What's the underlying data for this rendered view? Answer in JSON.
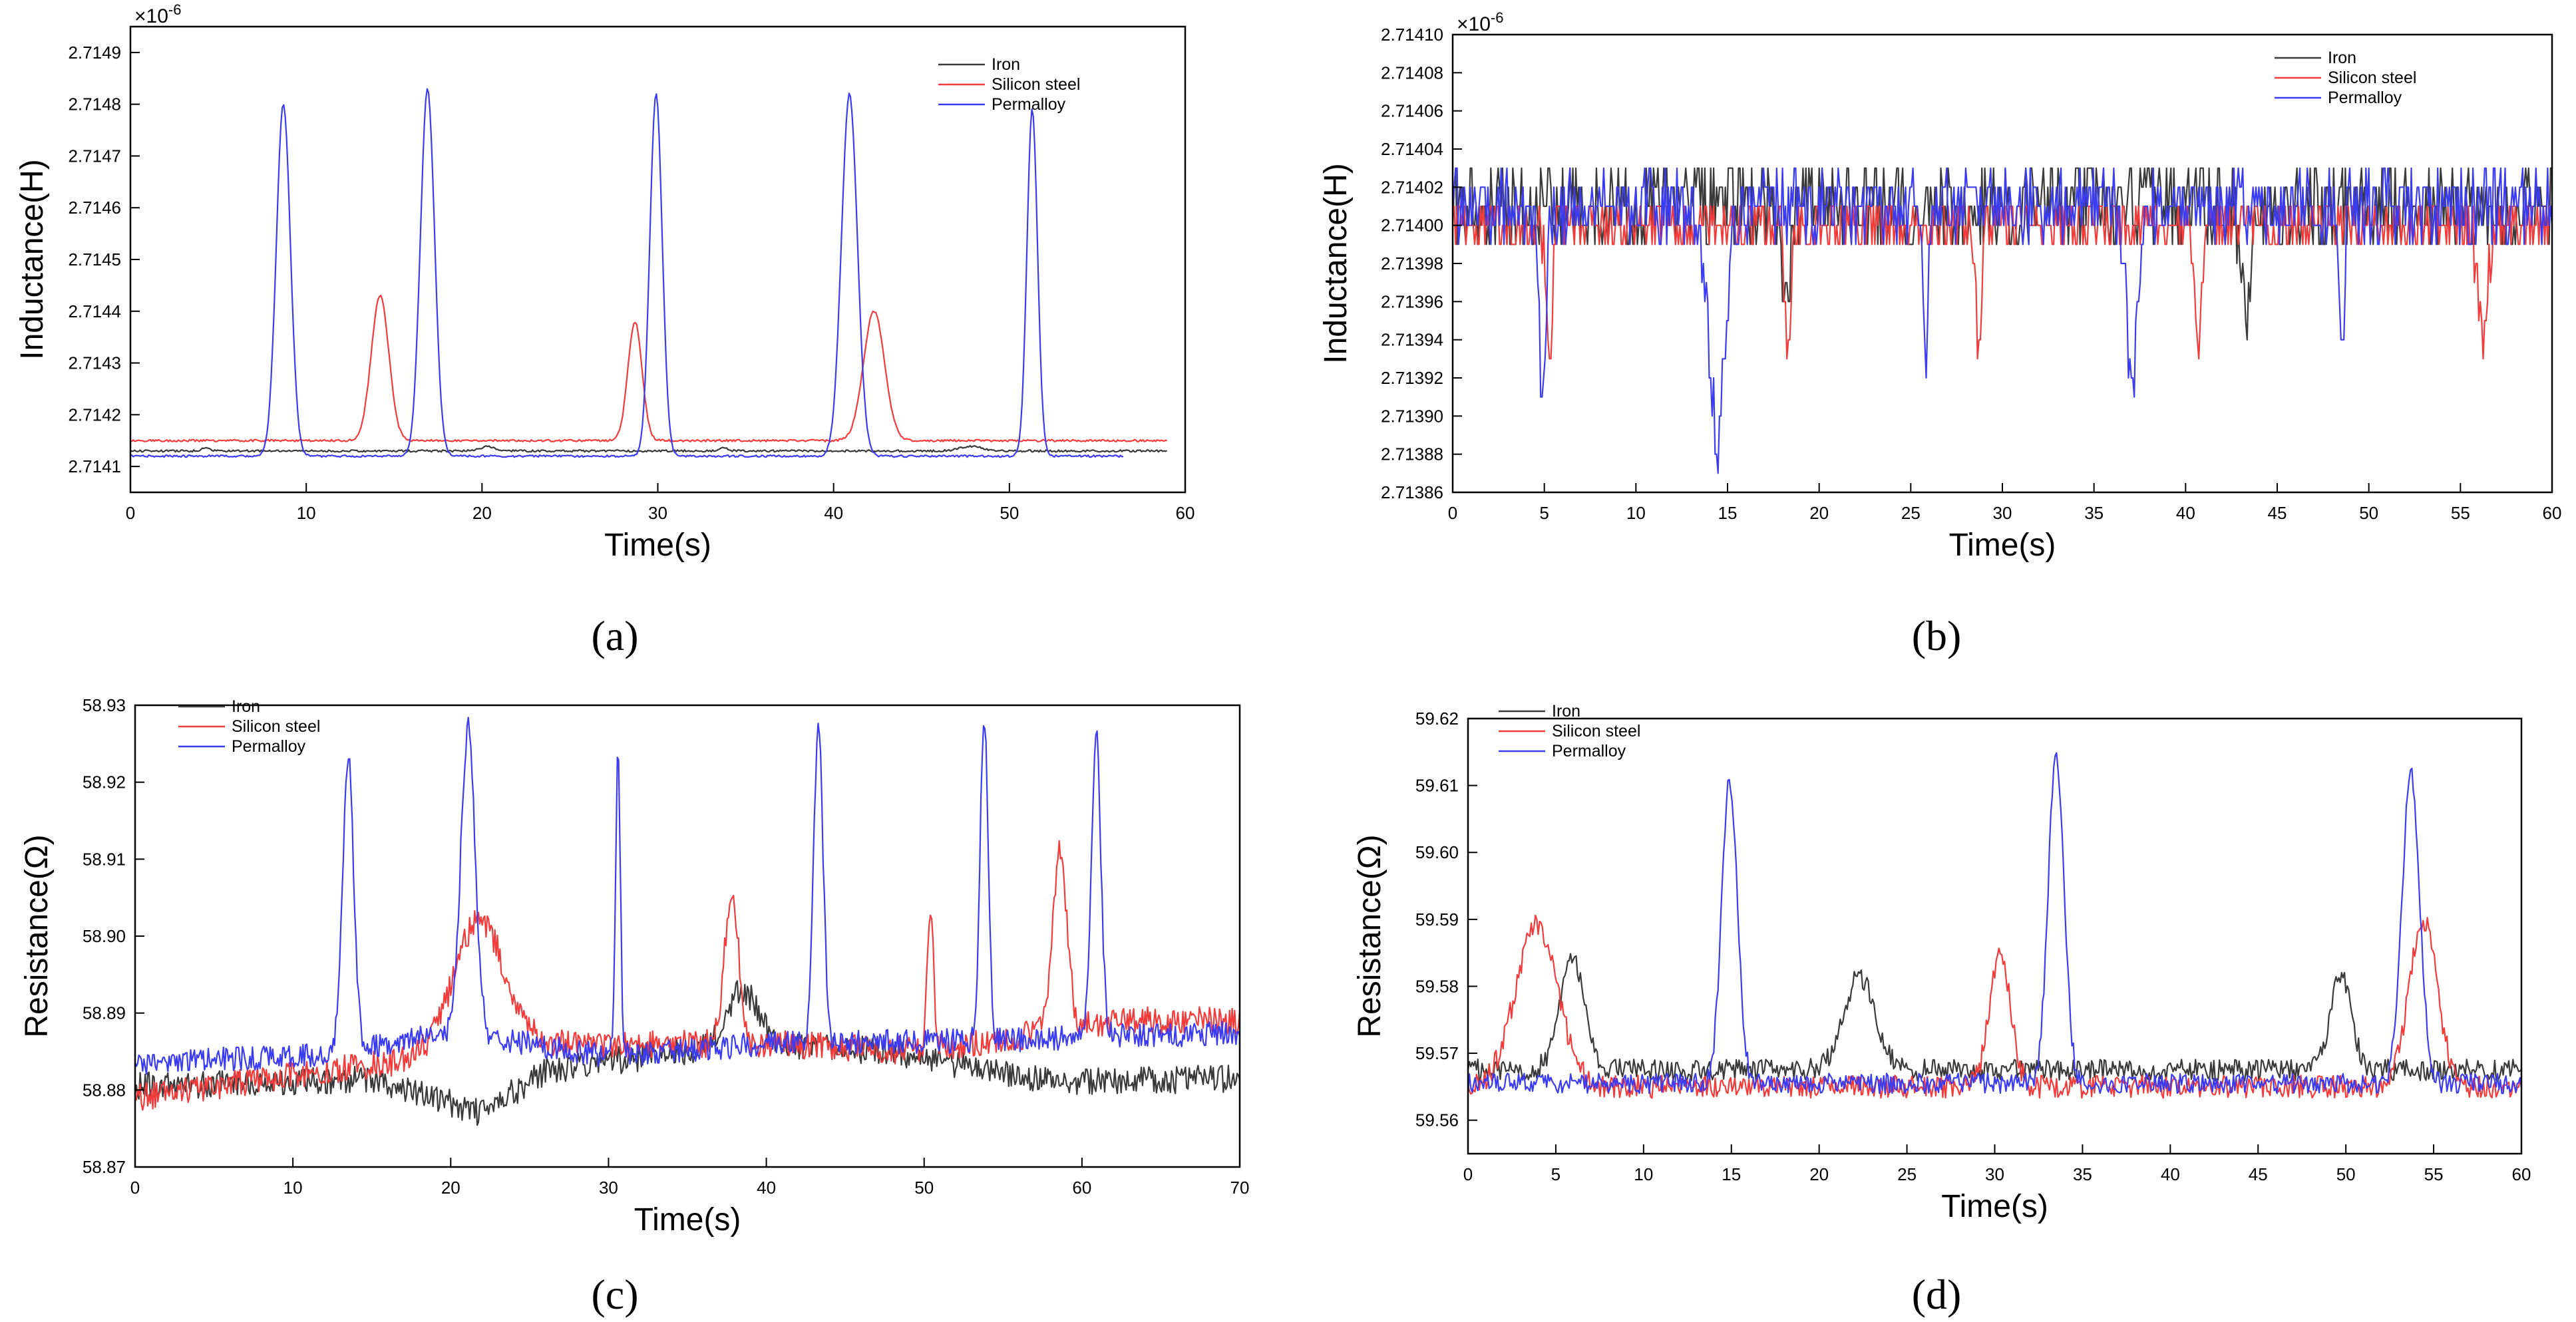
{
  "figure": {
    "panels": [
      {
        "caption": "(a)"
      },
      {
        "caption": "(b)"
      },
      {
        "caption": "(c)"
      },
      {
        "caption": "(d)"
      }
    ]
  },
  "colors": {
    "iron": "#3a3a3a",
    "silicon_steel": "#f23b3b",
    "permalloy": "#3b3bf2",
    "axis": "#000000",
    "background": "#ffffff"
  },
  "chart_data": [
    {
      "type": "line",
      "title": "",
      "xlabel": "Time(s)",
      "ylabel": "Inductance(H)",
      "multiplier_label": "×10",
      "multiplier_exp": "-6",
      "xlim": [
        0,
        60
      ],
      "ylim": [
        2.71405,
        2.71495
      ],
      "xticks": [
        0,
        10,
        20,
        30,
        40,
        50,
        60
      ],
      "yticks": [
        2.7141,
        2.7142,
        2.7143,
        2.7144,
        2.7145,
        2.7146,
        2.7147,
        2.7148,
        2.7149
      ],
      "ytick_labels": [
        "2.7141",
        "2.7142",
        "2.7143",
        "2.7144",
        "2.7145",
        "2.7146",
        "2.7147",
        "2.7148",
        "2.7149"
      ],
      "legend_position": "top-right",
      "series": [
        {
          "name": "Iron",
          "color": "#3a3a3a",
          "x_end": 59,
          "baseline": 2.71413,
          "noise": 2e-06,
          "peaks": [
            [
              4.3,
              6e-06,
              0.25
            ],
            [
              20.3,
              8e-06,
              0.5
            ],
            [
              33.7,
              6e-06,
              0.25
            ],
            [
              47.8,
              9e-06,
              0.6
            ]
          ]
        },
        {
          "name": "Silicon steel",
          "color": "#f23b3b",
          "x_end": 59,
          "baseline": 2.71415,
          "noise": 2e-06,
          "peaks": [
            [
              14.2,
              0.00028,
              0.5
            ],
            [
              28.7,
              0.00023,
              0.4
            ],
            [
              42.3,
              0.00025,
              0.6
            ]
          ]
        },
        {
          "name": "Permalloy",
          "color": "#3b3bf2",
          "x_end": 56.5,
          "baseline": 2.71412,
          "noise": 2e-06,
          "peaks": [
            [
              8.7,
              0.00068,
              0.4
            ],
            [
              16.9,
              0.00071,
              0.4
            ],
            [
              29.9,
              0.0007,
              0.35
            ],
            [
              40.9,
              0.0007,
              0.45
            ],
            [
              51.3,
              0.00067,
              0.3
            ]
          ]
        }
      ]
    },
    {
      "type": "line",
      "title": "",
      "xlabel": "Time(s)",
      "ylabel": "Inductance(H)",
      "multiplier_label": "×10",
      "multiplier_exp": "-6",
      "xlim": [
        0,
        60
      ],
      "ylim": [
        2.71386,
        2.7141
      ],
      "xticks": [
        0,
        5,
        10,
        15,
        20,
        25,
        30,
        35,
        40,
        45,
        50,
        55,
        60
      ],
      "yticks": [
        2.71386,
        2.71388,
        2.7139,
        2.71392,
        2.71394,
        2.71396,
        2.71398,
        2.714,
        2.71402,
        2.71404,
        2.71406,
        2.71408,
        2.7141
      ],
      "ytick_labels": [
        "2.71386",
        "2.71388",
        "2.71390",
        "2.71392",
        "2.71394",
        "2.71396",
        "2.71398",
        "2.71400",
        "2.71402",
        "2.71404",
        "2.71406",
        "2.71408",
        "2.71410"
      ],
      "legend_position": "top-right",
      "series": [
        {
          "name": "Iron",
          "color": "#3a3a3a",
          "x_end": 60,
          "baseline": 2.71401,
          "noise": 2.2e-05,
          "quantum": 1e-05,
          "peaks": [
            [
              18.2,
              -6e-05,
              0.2
            ],
            [
              43.3,
              -6e-05,
              0.25
            ]
          ]
        },
        {
          "name": "Silicon steel",
          "color": "#f23b3b",
          "x_end": 60,
          "baseline": 2.714,
          "noise": 1.4e-05,
          "quantum": 1e-05,
          "peaks": [
            [
              5.3,
              -7e-05,
              0.15
            ],
            [
              18.3,
              -7e-05,
              0.15
            ],
            [
              28.7,
              -7e-05,
              0.15
            ],
            [
              40.7,
              -6e-05,
              0.2
            ],
            [
              56.2,
              -6e-05,
              0.25
            ]
          ]
        },
        {
          "name": "Permalloy",
          "color": "#3b3bf2",
          "x_end": 60,
          "baseline": 2.71401,
          "noise": 1.8e-05,
          "quantum": 1e-05,
          "peaks": [
            [
              4.9,
              -0.0001,
              0.2
            ],
            [
              14.4,
              -0.00012,
              0.45
            ],
            [
              25.8,
              -8e-05,
              0.15
            ],
            [
              37.1,
              -9e-05,
              0.3
            ],
            [
              48.5,
              -8e-05,
              0.15
            ]
          ]
        }
      ]
    },
    {
      "type": "line",
      "title": "",
      "xlabel": "Time(s)",
      "ylabel": "Resistance(Ω)",
      "xlim": [
        0,
        70
      ],
      "ylim": [
        58.87,
        58.93
      ],
      "xticks": [
        0,
        10,
        20,
        30,
        40,
        50,
        60,
        70
      ],
      "yticks": [
        58.87,
        58.88,
        58.89,
        58.9,
        58.91,
        58.92,
        58.93
      ],
      "ytick_labels": [
        "58.87",
        "58.88",
        "58.89",
        "58.90",
        "58.91",
        "58.92",
        "58.93"
      ],
      "legend_position": "top-left",
      "series": [
        {
          "name": "Iron",
          "color": "#3a3a3a",
          "x_end": 70,
          "baseline": 58.8815,
          "noise": 0.0018,
          "trend": [
            [
              0,
              58.8805
            ],
            [
              15,
              58.8815
            ],
            [
              22,
              58.877
            ],
            [
              26,
              58.8825
            ],
            [
              38,
              58.886
            ],
            [
              48,
              58.885
            ],
            [
              58,
              58.881
            ],
            [
              70,
              58.8815
            ]
          ],
          "peaks": [
            [
              38.5,
              0.007,
              1.0
            ]
          ]
        },
        {
          "name": "Silicon steel",
          "color": "#f23b3b",
          "x_end": 70,
          "baseline": 58.882,
          "noise": 0.0018,
          "trend": [
            [
              0,
              58.879
            ],
            [
              10,
              58.882
            ],
            [
              18,
              58.884
            ],
            [
              26,
              58.886
            ],
            [
              40,
              58.886
            ],
            [
              50,
              58.885
            ],
            [
              62,
              58.889
            ],
            [
              70,
              58.889
            ]
          ],
          "peaks": [
            [
              21.8,
              0.017,
              1.6
            ],
            [
              37.8,
              0.02,
              0.45
            ],
            [
              50.4,
              0.018,
              0.2
            ],
            [
              58.6,
              0.023,
              0.45
            ]
          ]
        },
        {
          "name": "Permalloy",
          "color": "#3b3bf2",
          "x_end": 70,
          "baseline": 58.8845,
          "noise": 0.0016,
          "trend": [
            [
              0,
              58.8835
            ],
            [
              12,
              58.8845
            ],
            [
              20,
              58.8875
            ],
            [
              30,
              58.8845
            ],
            [
              40,
              58.886
            ],
            [
              55,
              58.8865
            ],
            [
              70,
              58.8875
            ]
          ],
          "peaks": [
            [
              13.5,
              0.038,
              0.35
            ],
            [
              21.1,
              0.04,
              0.45
            ],
            [
              30.6,
              0.04,
              0.15
            ],
            [
              43.3,
              0.041,
              0.3
            ],
            [
              53.8,
              0.042,
              0.25
            ],
            [
              60.9,
              0.039,
              0.3
            ]
          ]
        }
      ]
    },
    {
      "type": "line",
      "title": "",
      "xlabel": "Time(s)",
      "ylabel": "Resistance(Ω)",
      "xlim": [
        0,
        60
      ],
      "ylim": [
        59.555,
        59.62
      ],
      "xticks": [
        0,
        5,
        10,
        15,
        20,
        25,
        30,
        35,
        40,
        45,
        50,
        55,
        60
      ],
      "yticks": [
        59.56,
        59.57,
        59.58,
        59.59,
        59.6,
        59.61,
        59.62
      ],
      "ytick_labels": [
        "59.56",
        "59.57",
        "59.58",
        "59.59",
        "59.60",
        "59.61",
        "59.62"
      ],
      "legend_position": "top-left",
      "series": [
        {
          "name": "Iron",
          "color": "#3a3a3a",
          "x_end": 60,
          "baseline": 59.5675,
          "noise": 0.0016,
          "peaks": [
            [
              5.9,
              0.017,
              0.7
            ],
            [
              22.3,
              0.014,
              0.9
            ],
            [
              49.7,
              0.014,
              0.6
            ]
          ]
        },
        {
          "name": "Silicon steel",
          "color": "#f23b3b",
          "x_end": 60,
          "baseline": 59.565,
          "noise": 0.0017,
          "peaks": [
            [
              3.9,
              0.024,
              1.2
            ],
            [
              30.3,
              0.02,
              0.6
            ],
            [
              54.4,
              0.025,
              0.8
            ]
          ]
        },
        {
          "name": "Permalloy",
          "color": "#3b3bf2",
          "x_end": 60,
          "baseline": 59.5655,
          "noise": 0.0015,
          "peaks": [
            [
              14.9,
              0.045,
              0.45
            ],
            [
              33.5,
              0.049,
              0.45
            ],
            [
              53.7,
              0.046,
              0.5
            ]
          ]
        }
      ]
    }
  ]
}
